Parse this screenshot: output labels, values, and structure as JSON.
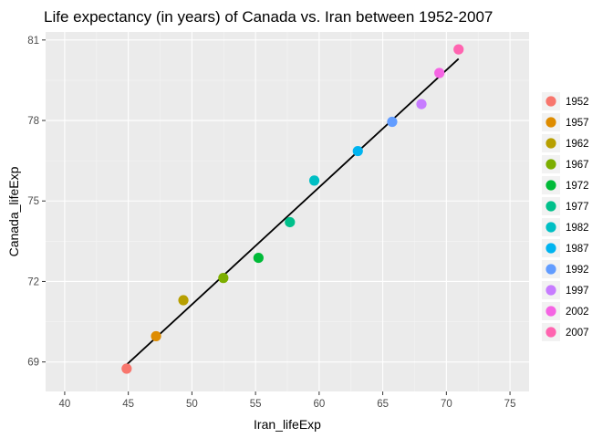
{
  "chart_data": {
    "type": "scatter",
    "title": "Life expectancy (in years) of Canada vs. Iran between 1952-2007",
    "xlabel": "Iran_lifeExp",
    "ylabel": "Canada_lifeExp",
    "xlim": [
      38.5,
      76.5
    ],
    "ylim": [
      67.9,
      81.3
    ],
    "x_ticks": [
      40,
      45,
      50,
      55,
      60,
      65,
      70,
      75
    ],
    "y_ticks": [
      69,
      72,
      75,
      78,
      81
    ],
    "grid": true,
    "legend_position": "right",
    "points": [
      {
        "label": "1952",
        "x": 44.87,
        "y": 68.75,
        "color": "#F8766D"
      },
      {
        "label": "1957",
        "x": 47.18,
        "y": 69.96,
        "color": "#DE8C00"
      },
      {
        "label": "1962",
        "x": 49.33,
        "y": 71.3,
        "color": "#B79F00"
      },
      {
        "label": "1967",
        "x": 52.47,
        "y": 72.13,
        "color": "#7CAE00"
      },
      {
        "label": "1972",
        "x": 55.23,
        "y": 72.88,
        "color": "#00BA38"
      },
      {
        "label": "1977",
        "x": 57.7,
        "y": 74.21,
        "color": "#00C08B"
      },
      {
        "label": "1982",
        "x": 59.62,
        "y": 75.76,
        "color": "#00BFC4"
      },
      {
        "label": "1987",
        "x": 63.04,
        "y": 76.86,
        "color": "#00B4F0"
      },
      {
        "label": "1992",
        "x": 65.74,
        "y": 77.95,
        "color": "#619CFF"
      },
      {
        "label": "1997",
        "x": 68.04,
        "y": 78.61,
        "color": "#C77CFF"
      },
      {
        "label": "2002",
        "x": 69.45,
        "y": 79.77,
        "color": "#F564E3"
      },
      {
        "label": "2007",
        "x": 70.96,
        "y": 80.65,
        "color": "#FF64B0"
      }
    ],
    "fit_line": {
      "x": [
        44.87,
        70.96
      ],
      "y": [
        68.9,
        80.3
      ],
      "color": "#000000"
    }
  }
}
